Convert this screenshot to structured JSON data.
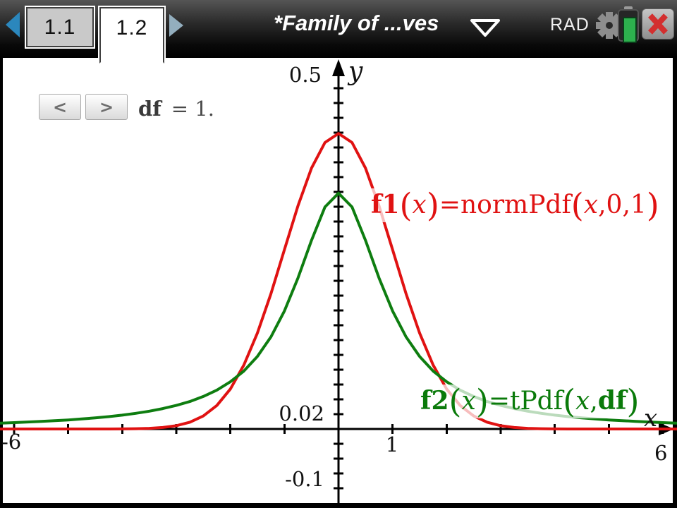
{
  "top_bar": {
    "page_tabs": [
      {
        "label": "1.1",
        "active": false
      },
      {
        "label": "1.2",
        "active": true
      }
    ],
    "title": "*Family of ...ves",
    "angle_mode": "RAD",
    "icons": {
      "prev_page": "left-triangle",
      "next_page": "right-triangle",
      "title_menu": "down-triangle-outline",
      "settings": "gear",
      "battery": "battery-green",
      "close": "red-x"
    }
  },
  "colors": {
    "f1_red": "#e01212",
    "f2_green": "#0e7d10",
    "battery_green": "#2db14e",
    "close_red": "#d32f2f",
    "nav_blue": "#2b87bd"
  },
  "slider": {
    "prev_label": "<",
    "next_label": ">",
    "value_runs": [
      [
        "b",
        "df"
      ],
      [
        "eq",
        "= 1."
      ]
    ]
  },
  "math_labels": {
    "f1": {
      "runs": [
        [
          "b",
          "f1"
        ],
        [
          "P",
          "("
        ],
        [
          "i",
          "x"
        ],
        [
          "P",
          ")"
        ],
        [
          "n",
          "=normPdf"
        ],
        [
          "P",
          "("
        ],
        [
          "i",
          "x"
        ],
        [
          "n",
          ",0,1"
        ],
        [
          "P",
          ")"
        ]
      ]
    },
    "f2": {
      "runs": [
        [
          "b",
          "f2"
        ],
        [
          "P",
          "("
        ],
        [
          "i",
          "x"
        ],
        [
          "P",
          ")"
        ],
        [
          "n",
          "=tPdf"
        ],
        [
          "P",
          "("
        ],
        [
          "i",
          "x"
        ],
        [
          "n",
          ","
        ],
        [
          "b",
          "df"
        ],
        [
          "P",
          ")"
        ]
      ]
    }
  },
  "chart_data": {
    "type": "line",
    "title": "",
    "xlabel": "x",
    "ylabel": "y",
    "xlim": [
      -6,
      6
    ],
    "ylim": [
      -0.1,
      0.5
    ],
    "x_tick_step": 1,
    "y_tick_step": 0.02,
    "grid": false,
    "legend_position": "none",
    "tick_labels": {
      "y_max": "0.5",
      "y_unit": "0.02",
      "y_min": "-0.1",
      "x_min": "-6",
      "x_unit": "1",
      "x_max": "6",
      "x_axis_name": "x",
      "y_axis_name": "y"
    },
    "parameters": {
      "df": 1
    },
    "x": [
      -6.25,
      -6,
      -5.75,
      -5.5,
      -5.25,
      -5,
      -4.75,
      -4.5,
      -4.25,
      -4,
      -3.75,
      -3.5,
      -3.25,
      -3,
      -2.75,
      -2.5,
      -2.25,
      -2,
      -1.75,
      -1.5,
      -1.25,
      -1,
      -0.75,
      -0.5,
      -0.25,
      0,
      0.25,
      0.5,
      0.75,
      1,
      1.25,
      1.5,
      1.75,
      2,
      2.25,
      2.5,
      2.75,
      3,
      3.25,
      3.5,
      3.75,
      4,
      4.25,
      4.5,
      4.75,
      5,
      5.25,
      5.5,
      5.75,
      6,
      6.25
    ],
    "series": [
      {
        "name": "f1(x)=normPdf(x,0,1)",
        "color": "#e01212",
        "values": [
          0,
          0,
          0,
          0,
          0,
          0,
          0,
          0,
          0,
          0.0001,
          0.0004,
          0.0009,
          0.002,
          0.0044,
          0.0091,
          0.0175,
          0.0317,
          0.054,
          0.0863,
          0.1295,
          0.1826,
          0.242,
          0.3011,
          0.3521,
          0.3867,
          0.3989,
          0.3867,
          0.3521,
          0.3011,
          0.242,
          0.1826,
          0.1295,
          0.0863,
          0.054,
          0.0317,
          0.0175,
          0.0091,
          0.0044,
          0.002,
          0.0009,
          0.0004,
          0.0001,
          0,
          0,
          0,
          0,
          0,
          0,
          0,
          0,
          0
        ]
      },
      {
        "name": "f2(x)=tPdf(x,df)",
        "color": "#0e7d10",
        "values": [
          0.0079,
          0.0086,
          0.0094,
          0.0103,
          0.0112,
          0.0122,
          0.0135,
          0.015,
          0.0167,
          0.0187,
          0.0211,
          0.024,
          0.0275,
          0.0318,
          0.037,
          0.0439,
          0.0525,
          0.0637,
          0.0782,
          0.0979,
          0.1243,
          0.1592,
          0.2037,
          0.2546,
          0.2996,
          0.3183,
          0.2996,
          0.2546,
          0.2037,
          0.1592,
          0.1243,
          0.0979,
          0.0782,
          0.0637,
          0.0525,
          0.0439,
          0.037,
          0.0318,
          0.0275,
          0.024,
          0.0211,
          0.0187,
          0.0167,
          0.015,
          0.0135,
          0.0122,
          0.0112,
          0.0103,
          0.0094,
          0.0086,
          0.0079
        ]
      }
    ]
  }
}
